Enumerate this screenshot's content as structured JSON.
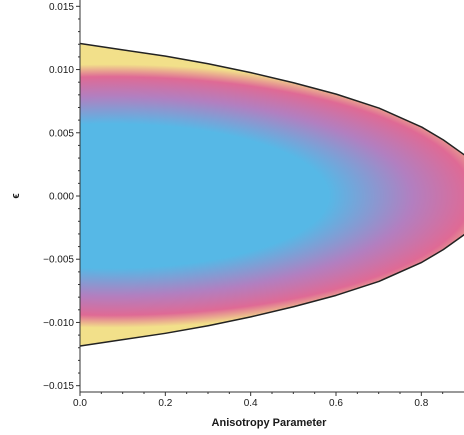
{
  "chart_data": {
    "type": "heatmap",
    "title": "",
    "xlabel": "Anisotropy Parameter",
    "ylabel": "ϵ",
    "xlim": [
      0.0,
      0.9
    ],
    "ylim": [
      -0.0155,
      0.0155
    ],
    "x_ticks": [
      "0.0",
      "0.2",
      "0.4",
      "0.6",
      "0.8"
    ],
    "x_tick_values": [
      0.0,
      0.2,
      0.4,
      0.6,
      0.8
    ],
    "y_ticks": [
      "0.015",
      "0.010",
      "0.005",
      "0.000",
      "-0.005",
      "-0.010",
      "-0.015"
    ],
    "y_tick_values": [
      0.015,
      0.01,
      0.005,
      0.0,
      -0.005,
      -0.01,
      -0.015
    ],
    "region_boundary": {
      "description_points_x": [
        0.0,
        0.1,
        0.2,
        0.3,
        0.4,
        0.5,
        0.6,
        0.7,
        0.8,
        0.85,
        0.9
      ],
      "upper_eps": [
        0.012,
        0.0115,
        0.011,
        0.0104,
        0.0097,
        0.0089,
        0.008,
        0.0069,
        0.0054,
        0.0044,
        0.0032
      ],
      "lower_eps": [
        -0.0118,
        -0.0113,
        -0.0108,
        -0.0102,
        -0.0095,
        -0.0087,
        -0.0078,
        -0.0067,
        -0.0052,
        -0.0042,
        -0.003
      ]
    },
    "colors": {
      "center": "#56b8e6",
      "mid": "#b27fc0",
      "outer": "#df6a95",
      "edge": "#f2e08a",
      "rim": "#222222"
    },
    "grid": false,
    "legend": "none"
  }
}
